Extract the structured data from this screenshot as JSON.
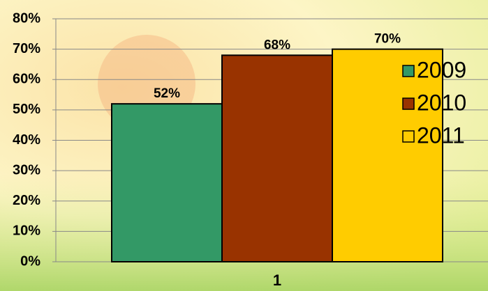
{
  "chart_data": {
    "type": "bar",
    "categories": [
      "1"
    ],
    "series": [
      {
        "name": "2009",
        "color": "#339966",
        "values": [
          52
        ],
        "value_labels": [
          "52%"
        ]
      },
      {
        "name": "2010",
        "color": "#993300",
        "values": [
          68
        ],
        "value_labels": [
          "68%"
        ]
      },
      {
        "name": "2011",
        "color": "#ffcc00",
        "values": [
          70
        ],
        "value_labels": [
          "70%"
        ]
      }
    ],
    "ylim": [
      0,
      80
    ],
    "yticks": [
      {
        "value": 0,
        "label": "0%"
      },
      {
        "value": 10,
        "label": "10%"
      },
      {
        "value": 20,
        "label": "20%"
      },
      {
        "value": 30,
        "label": "30%"
      },
      {
        "value": 40,
        "label": "40%"
      },
      {
        "value": 50,
        "label": "50%"
      },
      {
        "value": 60,
        "label": "60%"
      },
      {
        "value": 70,
        "label": "70%"
      },
      {
        "value": 80,
        "label": "80%"
      }
    ],
    "grid": true,
    "legend": "right"
  }
}
